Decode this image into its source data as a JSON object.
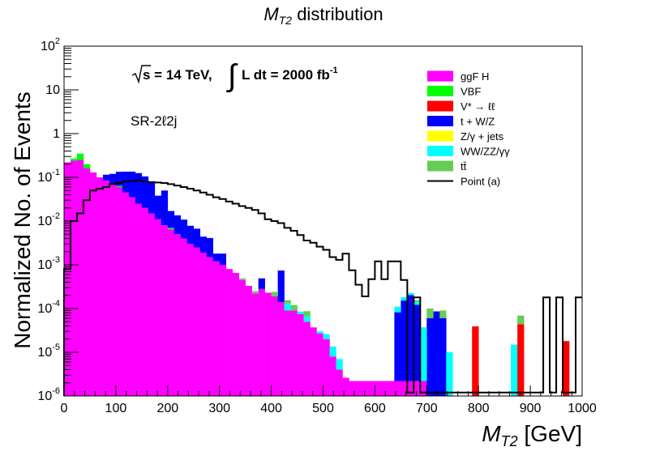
{
  "chart_data": {
    "type": "histogram-stacked-log",
    "title_main": "M",
    "title_sub": "T2",
    "title_rest": " distribution",
    "xlabel_main": "M",
    "xlabel_sub": "T2",
    "xlabel_rest": " [GeV]",
    "ylabel": "Normalized No. of Events",
    "xlim": [
      0,
      1000
    ],
    "ylim_exp": [
      -6,
      2
    ],
    "bin_width": 12.5,
    "x_ticks": [
      "0",
      "100",
      "200",
      "300",
      "400",
      "500",
      "600",
      "700",
      "800",
      "900",
      "1000"
    ],
    "y_ticks": [
      {
        "base": "10",
        "exp": "-6"
      },
      {
        "base": "10",
        "exp": "-5"
      },
      {
        "base": "10",
        "exp": "-4"
      },
      {
        "base": "10",
        "exp": "-3"
      },
      {
        "base": "10",
        "exp": "-2"
      },
      {
        "base": "10",
        "exp": "-1"
      },
      {
        "base": "1",
        "exp": ""
      },
      {
        "base": "10",
        "exp": ""
      },
      {
        "base": "10",
        "exp": "2"
      }
    ],
    "annotation_energy": "s = 14 TeV,",
    "annotation_lumi": "L dt = 2000 fb",
    "annotation_lumi_exp": "-1",
    "annotation_region": "SR-2ℓ2j",
    "legend": [
      {
        "label": "ggF H",
        "color": "#ff00ff",
        "type": "fill"
      },
      {
        "label": "VBF",
        "color": "#00ff00",
        "type": "fill"
      },
      {
        "label": "V* → ℓℓ",
        "color": "#ff0000",
        "type": "fill"
      },
      {
        "label": "t + W/Z",
        "color": "#0000ff",
        "type": "fill"
      },
      {
        "label": "Z/γ + jets",
        "color": "#ffff00",
        "type": "fill"
      },
      {
        "label": "WW/ZZ/γγ",
        "color": "#00ffff",
        "type": "fill"
      },
      {
        "label": "tt̄",
        "color": "#66cc55",
        "type": "fill"
      },
      {
        "label": "Point (a)",
        "color": "#000000",
        "type": "line"
      }
    ],
    "stack": [
      {
        "name": "ggF H",
        "color": "#ff00ff",
        "bins": [
          {
            "x": 0,
            "y": 0.22
          },
          {
            "x": 12.5,
            "y": 0.24
          },
          {
            "x": 25,
            "y": 0.25
          },
          {
            "x": 37.5,
            "y": 0.16
          },
          {
            "x": 50,
            "y": 0.13
          },
          {
            "x": 62.5,
            "y": 0.1
          },
          {
            "x": 75,
            "y": 0.085
          },
          {
            "x": 87.5,
            "y": 0.07
          },
          {
            "x": 100,
            "y": 0.06
          },
          {
            "x": 112.5,
            "y": 0.045
          },
          {
            "x": 125,
            "y": 0.035
          },
          {
            "x": 137.5,
            "y": 0.025
          },
          {
            "x": 150,
            "y": 0.02
          },
          {
            "x": 162.5,
            "y": 0.015
          },
          {
            "x": 175,
            "y": 0.011
          },
          {
            "x": 187.5,
            "y": 0.008
          },
          {
            "x": 200,
            "y": 0.0065
          },
          {
            "x": 212.5,
            "y": 0.005
          },
          {
            "x": 225,
            "y": 0.004
          },
          {
            "x": 237.5,
            "y": 0.003
          },
          {
            "x": 250,
            "y": 0.0025
          },
          {
            "x": 262.5,
            "y": 0.0019
          },
          {
            "x": 275,
            "y": 0.0015
          },
          {
            "x": 287.5,
            "y": 0.0012
          },
          {
            "x": 300,
            "y": 0.001
          },
          {
            "x": 312.5,
            "y": 0.0008
          },
          {
            "x": 325,
            "y": 0.00065
          },
          {
            "x": 337.5,
            "y": 0.00045
          },
          {
            "x": 350,
            "y": 0.00033
          },
          {
            "x": 362.5,
            "y": 0.00022
          },
          {
            "x": 375,
            "y": 0.00028
          },
          {
            "x": 387.5,
            "y": 0.00023
          },
          {
            "x": 400,
            "y": 0.00019
          },
          {
            "x": 412.5,
            "y": 0.00014
          },
          {
            "x": 425,
            "y": 9e-05
          },
          {
            "x": 437.5,
            "y": 9e-05
          },
          {
            "x": 450,
            "y": 7.5e-05
          },
          {
            "x": 462.5,
            "y": 5e-05
          },
          {
            "x": 475,
            "y": 3.7e-05
          },
          {
            "x": 487.5,
            "y": 2.7e-05
          },
          {
            "x": 500,
            "y": 2e-05
          },
          {
            "x": 512.5,
            "y": 8e-06
          },
          {
            "x": 525,
            "y": 4e-06
          },
          {
            "x": 537.5,
            "y": 2.6e-06
          },
          {
            "x": 550,
            "y": 2.2e-06
          },
          {
            "x": 562.5,
            "y": 2.2e-06
          },
          {
            "x": 575,
            "y": 2.2e-06
          },
          {
            "x": 587.5,
            "y": 2.2e-06
          },
          {
            "x": 600,
            "y": 2.2e-06
          },
          {
            "x": 612.5,
            "y": 2.2e-06
          },
          {
            "x": 625,
            "y": 2.2e-06
          },
          {
            "x": 637.5,
            "y": 2.2e-06
          },
          {
            "x": 650,
            "y": 2.2e-06
          },
          {
            "x": 662.5,
            "y": 2.2e-06
          },
          {
            "x": 675,
            "y": 2.2e-06
          },
          {
            "x": 687.5,
            "y": 2.2e-06
          }
        ]
      },
      {
        "name": "VBF",
        "color": "#00ff00",
        "bins": [
          {
            "x": 12.5,
            "y": 0.03
          },
          {
            "x": 25,
            "y": 0.1
          },
          {
            "x": 37.5,
            "y": 0.04
          },
          {
            "x": 100,
            "y": 0.004
          },
          {
            "x": 200,
            "y": 0.0005
          }
        ]
      },
      {
        "name": "t + W/Z",
        "color": "#0000ff",
        "bins": [
          {
            "x": 75,
            "y": 0.03
          },
          {
            "x": 87.5,
            "y": 0.05
          },
          {
            "x": 100,
            "y": 0.07
          },
          {
            "x": 112.5,
            "y": 0.09
          },
          {
            "x": 125,
            "y": 0.1
          },
          {
            "x": 137.5,
            "y": 0.1
          },
          {
            "x": 150,
            "y": 0.085
          },
          {
            "x": 162.5,
            "y": 0.065
          },
          {
            "x": 175,
            "y": 0.027
          },
          {
            "x": 187.5,
            "y": 0.042
          },
          {
            "x": 200,
            "y": 0.01
          },
          {
            "x": 212.5,
            "y": 0.0085
          },
          {
            "x": 225,
            "y": 0.0068
          },
          {
            "x": 237.5,
            "y": 0.0048
          },
          {
            "x": 250,
            "y": 0.0042
          },
          {
            "x": 262.5,
            "y": 0.0025
          },
          {
            "x": 275,
            "y": 0.0026
          },
          {
            "x": 287.5,
            "y": 0.0006
          },
          {
            "x": 300,
            "y": 0.0008
          },
          {
            "x": 375,
            "y": 0.00021
          },
          {
            "x": 412.5,
            "y": 0.0006
          },
          {
            "x": 637.5,
            "y": 8e-05
          },
          {
            "x": 650,
            "y": 0.00015
          },
          {
            "x": 662.5,
            "y": 0.0002
          },
          {
            "x": 675,
            "y": 0.00012
          },
          {
            "x": 700,
            "y": 6e-05
          },
          {
            "x": 712.5,
            "y": 8.6e-05
          },
          {
            "x": 725,
            "y": 6e-05
          }
        ]
      },
      {
        "name": "WW/ZZ/γγ",
        "color": "#00ffff",
        "bins": [
          {
            "x": 425,
            "y": 4e-05
          },
          {
            "x": 450,
            "y": 1e-05
          },
          {
            "x": 462.5,
            "y": 1.7e-05
          },
          {
            "x": 487.5,
            "y": 3e-06
          },
          {
            "x": 500,
            "y": 6e-06
          },
          {
            "x": 512.5,
            "y": 5.5e-06
          },
          {
            "x": 525,
            "y": 3e-06
          },
          {
            "x": 637.5,
            "y": 2.8e-05
          },
          {
            "x": 650,
            "y": 3e-05
          },
          {
            "x": 662.5,
            "y": 2.4e-05
          },
          {
            "x": 675,
            "y": 1.8e-05
          },
          {
            "x": 687.5,
            "y": 3.5e-05
          },
          {
            "x": 737.5,
            "y": 1e-05
          },
          {
            "x": 862.5,
            "y": 1.5e-05
          }
        ]
      },
      {
        "name": "V* → ℓℓ",
        "color": "#ff0000",
        "bins": [
          {
            "x": 787.5,
            "y": 3.9e-05
          },
          {
            "x": 875,
            "y": 4.4e-05
          },
          {
            "x": 962.5,
            "y": 1.8e-05
          }
        ]
      },
      {
        "name": "tt̄",
        "color": "#66cc55",
        "bins": [
          {
            "x": 337.5,
            "y": 4e-05
          },
          {
            "x": 362.5,
            "y": 3e-05
          },
          {
            "x": 400,
            "y": 5e-05
          },
          {
            "x": 425,
            "y": 2.5e-05
          },
          {
            "x": 437.5,
            "y": 3e-05
          },
          {
            "x": 462.5,
            "y": 2e-05
          },
          {
            "x": 675,
            "y": 1.5e-05
          },
          {
            "x": 700,
            "y": 4e-05
          },
          {
            "x": 725,
            "y": 3e-05
          },
          {
            "x": 875,
            "y": 2.5e-05
          }
        ]
      }
    ],
    "line_series": {
      "name": "Point (a)",
      "color": "#000000",
      "bins": [
        {
          "x": 0,
          "y": 0.0008
        },
        {
          "x": 12.5,
          "y": 0.01
        },
        {
          "x": 25,
          "y": 0.015
        },
        {
          "x": 37.5,
          "y": 0.03
        },
        {
          "x": 50,
          "y": 0.05
        },
        {
          "x": 62.5,
          "y": 0.055
        },
        {
          "x": 75,
          "y": 0.06
        },
        {
          "x": 87.5,
          "y": 0.07
        },
        {
          "x": 100,
          "y": 0.075
        },
        {
          "x": 112.5,
          "y": 0.08
        },
        {
          "x": 125,
          "y": 0.082
        },
        {
          "x": 137.5,
          "y": 0.085
        },
        {
          "x": 150,
          "y": 0.08
        },
        {
          "x": 162.5,
          "y": 0.078
        },
        {
          "x": 175,
          "y": 0.076
        },
        {
          "x": 187.5,
          "y": 0.074
        },
        {
          "x": 200,
          "y": 0.07
        },
        {
          "x": 212.5,
          "y": 0.065
        },
        {
          "x": 225,
          "y": 0.06
        },
        {
          "x": 237.5,
          "y": 0.055
        },
        {
          "x": 250,
          "y": 0.05
        },
        {
          "x": 262.5,
          "y": 0.045
        },
        {
          "x": 275,
          "y": 0.04
        },
        {
          "x": 287.5,
          "y": 0.035
        },
        {
          "x": 300,
          "y": 0.032
        },
        {
          "x": 312.5,
          "y": 0.028
        },
        {
          "x": 325,
          "y": 0.025
        },
        {
          "x": 337.5,
          "y": 0.022
        },
        {
          "x": 350,
          "y": 0.02
        },
        {
          "x": 362.5,
          "y": 0.018
        },
        {
          "x": 375,
          "y": 0.015
        },
        {
          "x": 387.5,
          "y": 0.011
        },
        {
          "x": 400,
          "y": 0.01
        },
        {
          "x": 412.5,
          "y": 0.009
        },
        {
          "x": 425,
          "y": 0.007
        },
        {
          "x": 437.5,
          "y": 0.006
        },
        {
          "x": 450,
          "y": 0.0048
        },
        {
          "x": 462.5,
          "y": 0.0036
        },
        {
          "x": 475,
          "y": 0.0032
        },
        {
          "x": 487.5,
          "y": 0.0026
        },
        {
          "x": 500,
          "y": 0.0022
        },
        {
          "x": 512.5,
          "y": 0.0015
        },
        {
          "x": 525,
          "y": 0.0013
        },
        {
          "x": 537.5,
          "y": 0.0018
        },
        {
          "x": 550,
          "y": 0.00075
        },
        {
          "x": 562.5,
          "y": 0.00035
        },
        {
          "x": 575,
          "y": 0.00019
        },
        {
          "x": 587.5,
          "y": 0.00047
        },
        {
          "x": 600,
          "y": 0.0012
        },
        {
          "x": 612.5,
          "y": 0.00047
        },
        {
          "x": 625,
          "y": 0.0012
        },
        {
          "x": 637.5,
          "y": 0.0012
        },
        {
          "x": 650,
          "y": 0.00045
        },
        {
          "x": 662.5,
          "y": 1.2e-06
        },
        {
          "x": 675,
          "y": 0.00018
        },
        {
          "x": 687.5,
          "y": 1.2e-06
        },
        {
          "x": 700,
          "y": 1.2e-06
        },
        {
          "x": 712.5,
          "y": 1.2e-06
        },
        {
          "x": 725,
          "y": 1.2e-06
        },
        {
          "x": 737.5,
          "y": 1.2e-06
        },
        {
          "x": 750,
          "y": 1.2e-06
        },
        {
          "x": 762.5,
          "y": 1.2e-06
        },
        {
          "x": 775,
          "y": 1.2e-06
        },
        {
          "x": 787.5,
          "y": 1.2e-06
        },
        {
          "x": 800,
          "y": 1.2e-06
        },
        {
          "x": 812.5,
          "y": 1.2e-06
        },
        {
          "x": 825,
          "y": 1.2e-06
        },
        {
          "x": 837.5,
          "y": 1.2e-06
        },
        {
          "x": 850,
          "y": 1.2e-06
        },
        {
          "x": 862.5,
          "y": 1.2e-06
        },
        {
          "x": 875,
          "y": 1.2e-06
        },
        {
          "x": 887.5,
          "y": 1.2e-06
        },
        {
          "x": 900,
          "y": 1.2e-06
        },
        {
          "x": 912.5,
          "y": 1.2e-06
        },
        {
          "x": 925,
          "y": 0.00018
        },
        {
          "x": 937.5,
          "y": 1.2e-06
        },
        {
          "x": 950,
          "y": 0.00018
        },
        {
          "x": 962.5,
          "y": 1.2e-06
        },
        {
          "x": 975,
          "y": 1.2e-06
        },
        {
          "x": 987.5,
          "y": 0.00018
        }
      ]
    }
  }
}
